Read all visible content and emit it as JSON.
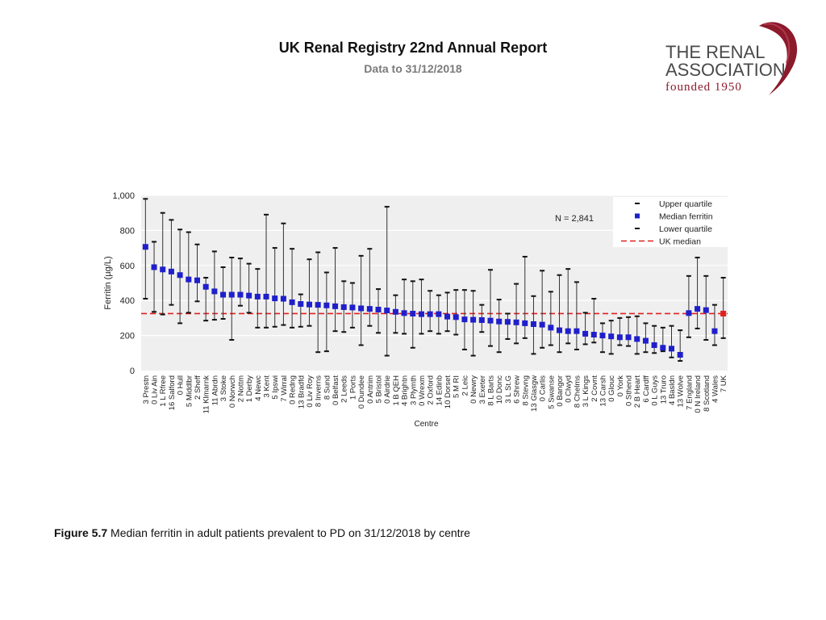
{
  "header": {
    "title": "UK Renal Registry 22nd Annual Report",
    "subtitle": "Data to 31/12/2018"
  },
  "logo": {
    "line1": "THE RENAL",
    "line2": "ASSOCIATION",
    "line3": "founded 1950",
    "color": "#8b1a2b"
  },
  "caption": {
    "label": "Figure 5.7",
    "text": " Median ferritin in adult patients prevalent to PD on 31/12/2018 by centre"
  },
  "chart_data": {
    "type": "scatter",
    "ylabel": "Ferritin (µg/L)",
    "xlabel": "Centre",
    "ylim": [
      0,
      1000
    ],
    "yticks": [
      0,
      200,
      400,
      600,
      800,
      1000
    ],
    "ytick_labels": [
      "0",
      "200",
      "400",
      "600",
      "800",
      "1,000"
    ],
    "annotation": "N = 2,841",
    "uk_median": 325,
    "legend": {
      "position": "top-right",
      "entries": [
        "Upper quartile",
        "Median ferritin",
        "Lower quartile",
        "UK median"
      ]
    },
    "colors": {
      "median": "#1f1fcc",
      "uk_point": "#e02020",
      "uk_median_line": "#e02020",
      "quartile": "#111111",
      "plot_bg": "#efefef"
    },
    "categories": [
      "3 Prestn",
      "0 Liv Ain",
      "1 L Rfree",
      "16 Salford",
      "0 Hull",
      "5 Middlbr",
      "2 Sheff",
      "11 Klmarnk",
      "11 Abrdn",
      "3 Stoke",
      "0 Norwch",
      "2 Nottm",
      "1 Derby",
      "4 Newc",
      "3 Kent",
      "5 Ipswi",
      "7 Wirral",
      "0 Redng",
      "13 Bradfd",
      "0 Liv Roy",
      "8 Inverns",
      "8 Sund",
      "0 Belfast",
      "2 Leeds",
      "1 Ports",
      "0 Dundee",
      "0 Antrim",
      "5 Bristol",
      "0 Airdrie",
      "1 B QEH",
      "4 Brightn",
      "3 Plymth",
      "0 Wrexm",
      "2 Oxford",
      "14 Edinb",
      "10 Dorset",
      "5 M RI",
      "2 Leic",
      "0 Newry",
      "3 Exeter",
      "8 L Barts",
      "10 Donc",
      "3 L St.G",
      "6 Shrew",
      "8 Stevng",
      "13 Glasgw",
      "0 Carlis",
      "5 Swanse",
      "0 Bangor",
      "0 Clwyd",
      "8 Chelms",
      "3 L Kings",
      "2 Covnt",
      "13 Carsh",
      "0 Glouc",
      "0 York",
      "0 Sthend",
      "2 B Heart",
      "6 Cardff",
      "0 L Guys",
      "13 Truro",
      "4 Basldn",
      "13 Wolve",
      "7 England",
      "0 N Ireland",
      "8 Scotland",
      "4 Wales",
      "7 UK"
    ],
    "median": [
      706,
      590,
      577,
      565,
      545,
      520,
      515,
      478,
      452,
      433,
      433,
      433,
      428,
      422,
      422,
      412,
      410,
      390,
      380,
      377,
      375,
      372,
      367,
      362,
      360,
      355,
      352,
      348,
      343,
      335,
      328,
      325,
      322,
      322,
      322,
      308,
      305,
      292,
      290,
      288,
      285,
      280,
      278,
      275,
      270,
      265,
      262,
      245,
      230,
      225,
      225,
      210,
      205,
      200,
      195,
      190,
      190,
      180,
      170,
      145,
      130,
      125,
      90,
      328,
      352,
      345,
      225,
      325
    ],
    "upper": [
      980,
      735,
      900,
      860,
      805,
      790,
      720,
      530,
      680,
      590,
      645,
      640,
      610,
      580,
      890,
      700,
      840,
      695,
      435,
      635,
      675,
      560,
      700,
      510,
      500,
      655,
      695,
      465,
      935,
      430,
      520,
      510,
      520,
      455,
      430,
      445,
      460,
      460,
      455,
      375,
      575,
      405,
      325,
      495,
      650,
      425,
      570,
      450,
      545,
      580,
      505,
      330,
      410,
      270,
      285,
      300,
      305,
      310,
      270,
      255,
      245,
      255,
      230,
      540,
      645,
      540,
      375,
      530
    ],
    "lower": [
      410,
      335,
      320,
      375,
      270,
      330,
      395,
      285,
      290,
      295,
      175,
      370,
      330,
      245,
      245,
      250,
      260,
      245,
      250,
      255,
      105,
      110,
      225,
      220,
      245,
      145,
      255,
      215,
      85,
      215,
      210,
      130,
      210,
      225,
      210,
      225,
      205,
      120,
      85,
      220,
      140,
      105,
      180,
      155,
      185,
      95,
      130,
      145,
      105,
      155,
      120,
      150,
      160,
      105,
      95,
      145,
      140,
      95,
      105,
      100,
      110,
      75,
      55,
      190,
      240,
      175,
      145,
      185
    ]
  }
}
